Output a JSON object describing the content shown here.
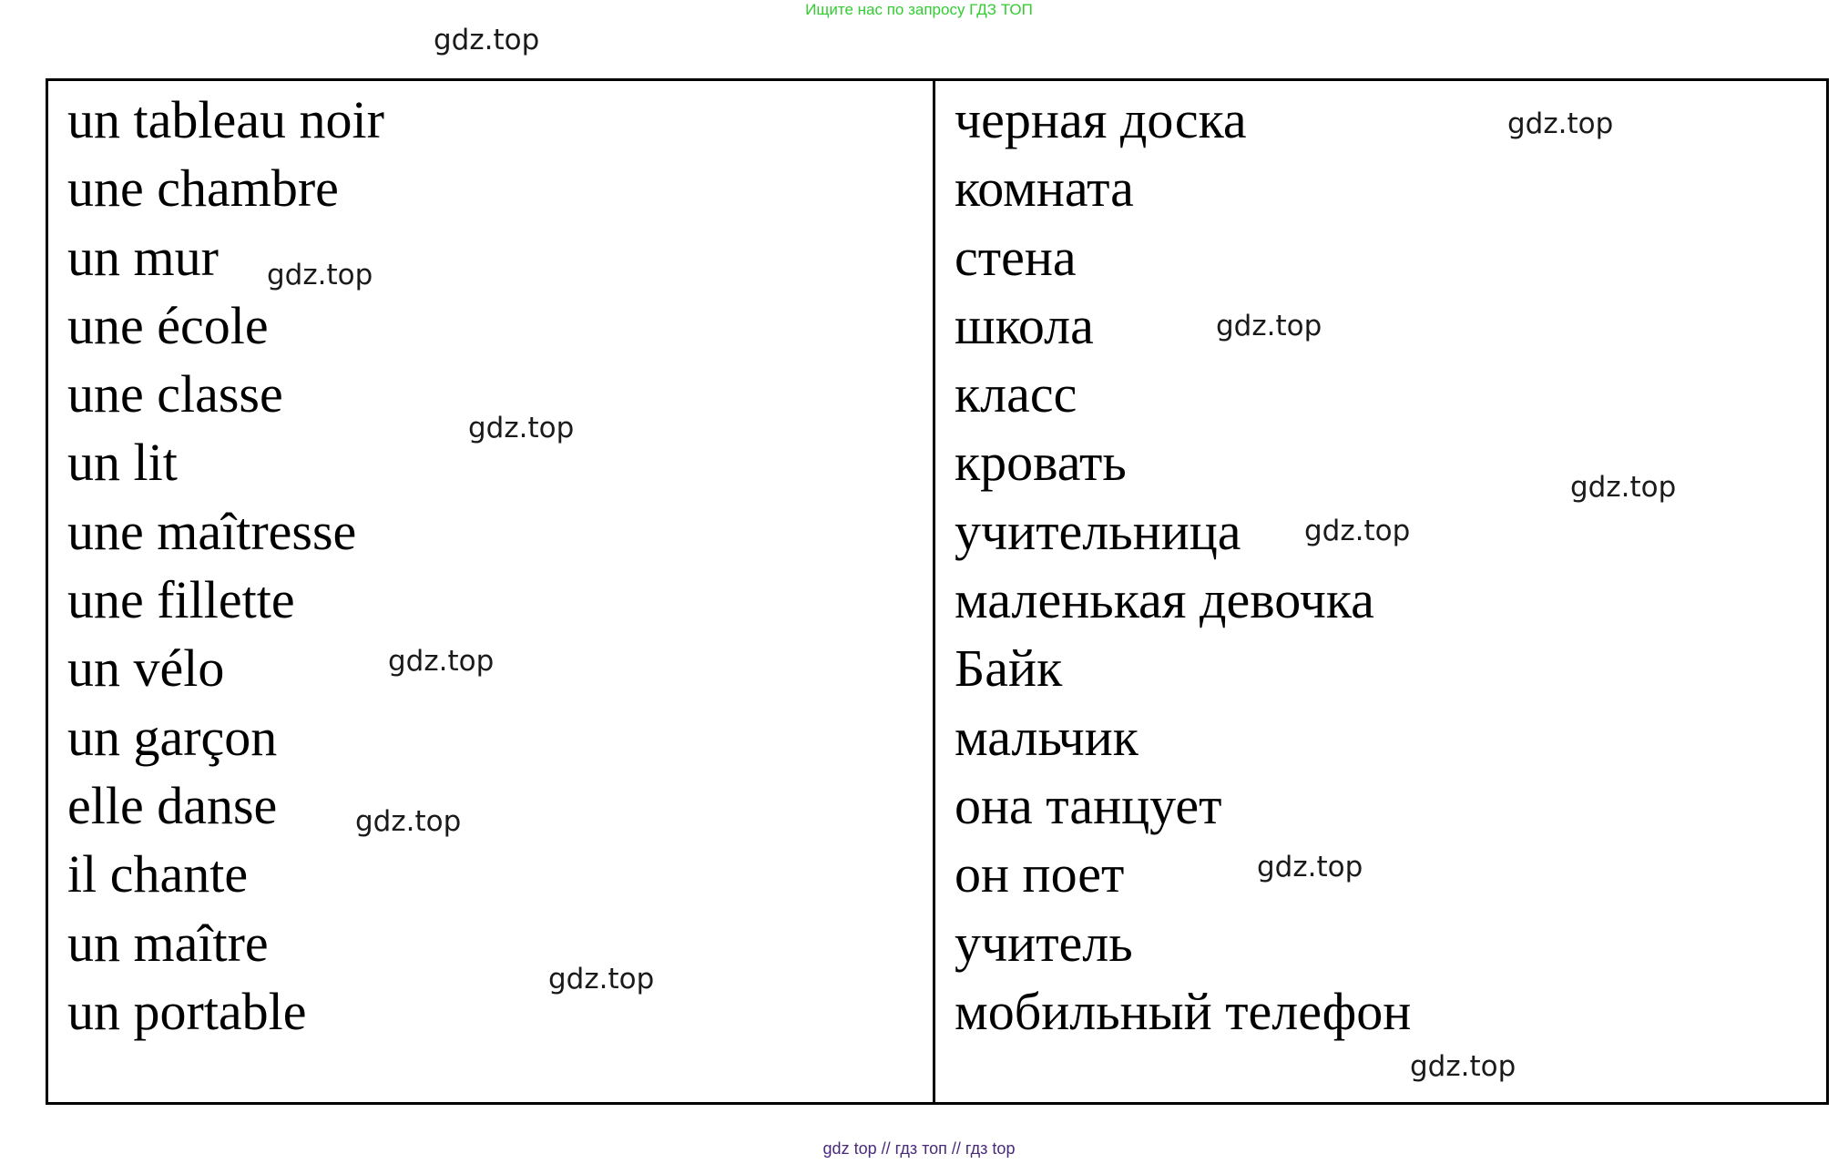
{
  "header": {
    "banner": "Ищите нас по запросу ГДЗ ТОП"
  },
  "watermark": "gdz.top",
  "vocabulary": {
    "french": [
      "un tableau noir",
      "une chambre",
      "un mur",
      "une école",
      "une classe",
      "un lit",
      "une maîtresse",
      "une fillette",
      "un vélo",
      "un garçon",
      "elle danse",
      "il chante",
      "un maître",
      "un portable"
    ],
    "russian": [
      "черная доска",
      "комната",
      "стена",
      "школа",
      "класс",
      "кровать",
      "учительница",
      "маленькая девочка",
      "Байк",
      "мальчик",
      "она танцует",
      "он поет",
      "учитель",
      "мобильный телефон"
    ]
  },
  "footer": {
    "text": "gdz top  //  гдз топ  //  гдз top"
  }
}
